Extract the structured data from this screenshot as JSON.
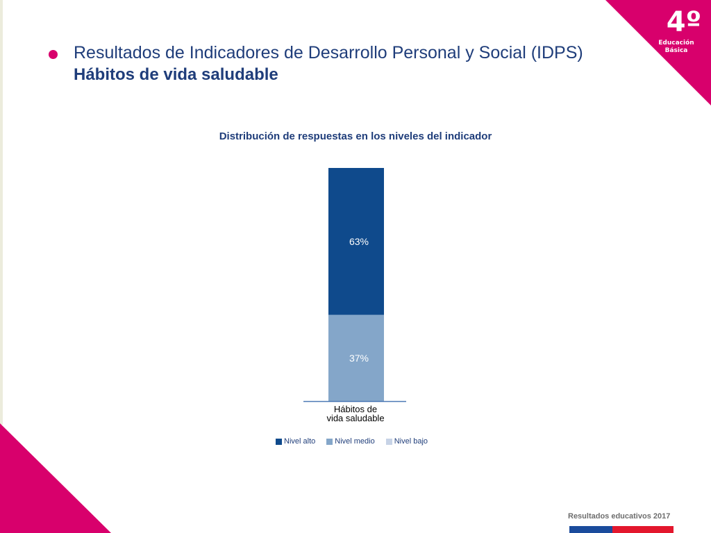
{
  "header": {
    "title": "Resultados de Indicadores de Desarrollo Personal y Social (IDPS)",
    "subtitle": "Hábitos de vida saludable"
  },
  "badge": {
    "grade": "4º",
    "level_line1": "Educación",
    "level_line2": "Básica"
  },
  "colors": {
    "accent": "#d8006c",
    "title": "#1f3d7a",
    "nivel_alto": "#0f4a8c",
    "nivel_medio": "#84a6c9",
    "nivel_bajo": "#c7d3e6"
  },
  "chart_data": {
    "type": "bar",
    "stacked": true,
    "title": "Distribución de respuestas en los niveles del indicador",
    "categories": [
      "Hábitos de vida saludable"
    ],
    "category_label_lines": [
      "Hábitos de",
      "vida saludable"
    ],
    "series": [
      {
        "name": "Nivel alto",
        "values": [
          63
        ],
        "labels": [
          "63%"
        ]
      },
      {
        "name": "Nivel medio",
        "values": [
          37
        ],
        "labels": [
          "37%"
        ]
      },
      {
        "name": "Nivel bajo",
        "values": [
          0
        ],
        "labels": [
          ""
        ]
      }
    ],
    "ylim": [
      0,
      100
    ],
    "grid": false,
    "legend_position": "bottom"
  },
  "footer": {
    "text": "Resultados educativos 2017"
  }
}
